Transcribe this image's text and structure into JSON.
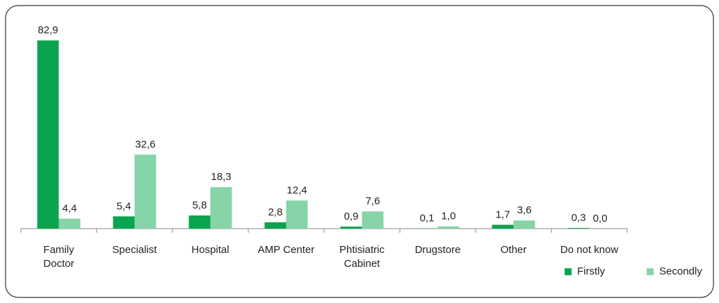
{
  "chart_data": {
    "type": "bar",
    "categories": [
      "Family\nDoctor",
      "Specialist",
      "Hospital",
      "AMP Center",
      "Phtisiatric\nCabinet",
      "Drugstore",
      "Other",
      "Do not know"
    ],
    "series": [
      {
        "name": "Firstly",
        "color": "#0aa44f",
        "values": [
          82.9,
          5.4,
          5.8,
          2.8,
          0.9,
          0.1,
          1.7,
          0.3
        ],
        "value_labels": [
          "82,9",
          "5,4",
          "5,8",
          "2,8",
          "0,9",
          "0,1",
          "1,7",
          "0,3"
        ]
      },
      {
        "name": "Secondly",
        "color": "#86d4a8",
        "values": [
          4.4,
          32.6,
          18.3,
          12.4,
          7.6,
          1.0,
          3.6,
          0.0
        ],
        "value_labels": [
          "4,4",
          "32,6",
          "18,3",
          "12,4",
          "7,6",
          "1,0",
          "3,6",
          "0,0"
        ]
      }
    ],
    "ylim": [
      0,
      90
    ],
    "legend": "bottom-right"
  }
}
